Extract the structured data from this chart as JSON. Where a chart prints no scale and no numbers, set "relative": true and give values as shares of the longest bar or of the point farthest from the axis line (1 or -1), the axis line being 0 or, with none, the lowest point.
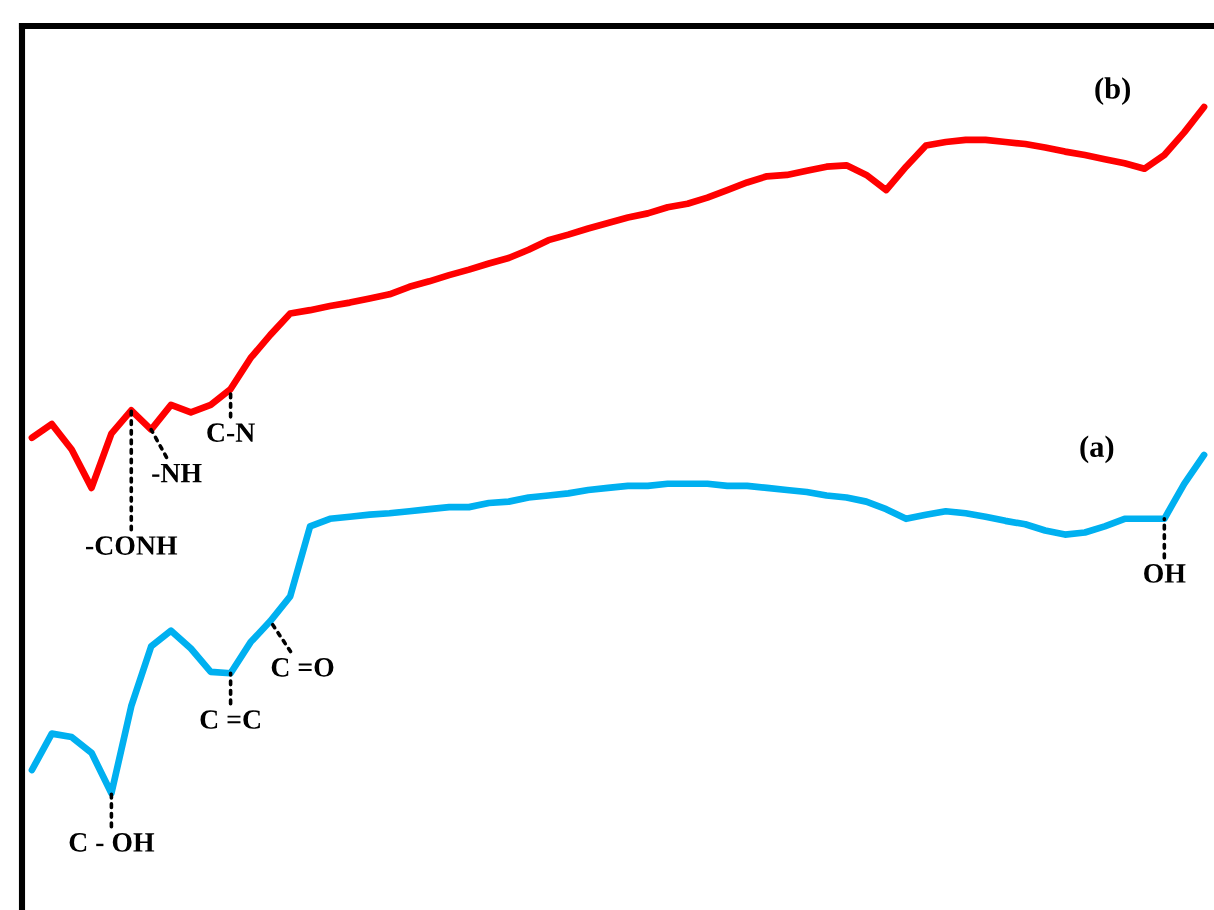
{
  "chart_data": {
    "type": "line",
    "relative": true,
    "categories": [
      null,
      null,
      null,
      null,
      null,
      null,
      null,
      null,
      null,
      null,
      null,
      null,
      null,
      null,
      null,
      null,
      null,
      null,
      null,
      null,
      null,
      null,
      null,
      null,
      null,
      null,
      null,
      null,
      null,
      null,
      null,
      null,
      null,
      null,
      null,
      null,
      null,
      null,
      null,
      null,
      null,
      null,
      null,
      null,
      null,
      null,
      null,
      null,
      null,
      null,
      null,
      null,
      null,
      null,
      null,
      null,
      null,
      null,
      null,
      null
    ],
    "series": [
      {
        "name": "(b)",
        "color": "#ff0000",
        "values": [
          0.518,
          0.538,
          0.501,
          0.445,
          0.524,
          0.558,
          0.53,
          0.566,
          0.555,
          0.566,
          0.589,
          0.634,
          0.668,
          0.699,
          0.704,
          0.71,
          0.715,
          0.721,
          0.727,
          0.738,
          0.746,
          0.755,
          0.763,
          0.772,
          0.78,
          0.792,
          0.806,
          0.814,
          0.823,
          0.831,
          0.839,
          0.845,
          0.854,
          0.859,
          0.868,
          0.879,
          0.89,
          0.899,
          0.901,
          0.907,
          0.913,
          0.915,
          0.901,
          0.879,
          0.913,
          0.944,
          0.949,
          0.952,
          0.952,
          0.949,
          0.946,
          0.941,
          0.935,
          0.93,
          0.924,
          0.918,
          0.91,
          0.93,
          0.963,
          1.0
        ]
      },
      {
        "name": "(a)",
        "color": "#00b0f0",
        "values": [
          0.034,
          0.087,
          0.082,
          0.059,
          0.0,
          0.127,
          0.214,
          0.237,
          0.211,
          0.177,
          0.175,
          0.22,
          0.251,
          0.287,
          0.389,
          0.4,
          0.403,
          0.406,
          0.408,
          0.411,
          0.414,
          0.417,
          0.417,
          0.423,
          0.425,
          0.431,
          0.434,
          0.437,
          0.442,
          0.445,
          0.448,
          0.448,
          0.451,
          0.451,
          0.451,
          0.448,
          0.448,
          0.445,
          0.442,
          0.439,
          0.434,
          0.431,
          0.425,
          0.414,
          0.4,
          0.406,
          0.411,
          0.408,
          0.403,
          0.397,
          0.392,
          0.383,
          0.377,
          0.38,
          0.389,
          0.4,
          0.4,
          0.4,
          0.451,
          0.493
        ]
      }
    ],
    "annotations": [
      "-CONH",
      "-NH",
      "C-N",
      "C =C",
      "C =O",
      "C - OH",
      "OH"
    ],
    "marker": "none",
    "line_style": "solid",
    "legend": false
  }
}
